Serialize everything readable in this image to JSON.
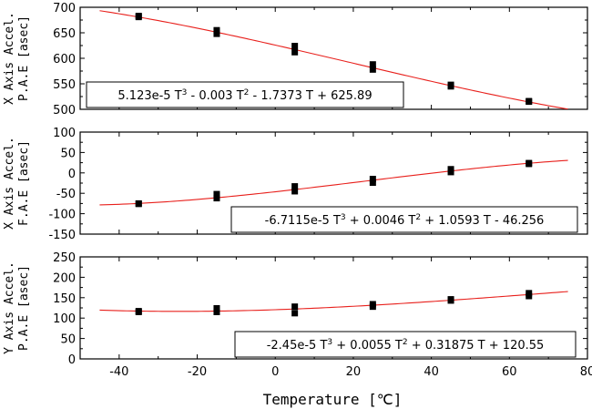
{
  "chart_data": [
    {
      "type": "scatter",
      "ylabel_line1": "X Axis Accel.",
      "ylabel_line2": "P.A.E [asec]",
      "xlim": [
        -50,
        80
      ],
      "ylim": [
        500,
        700
      ],
      "yticks": [
        500,
        550,
        600,
        650,
        700
      ],
      "equation": {
        "c3": "5.123e-5",
        "op1": " - ",
        "c2": "0.003",
        "op2": " - ",
        "c1": "1.7373",
        "op0": " + ",
        "c0": "625.89"
      },
      "fit": {
        "a3": 5.123e-05,
        "a2": -0.003,
        "a1": -1.7373,
        "a0": 625.89,
        "xrange": [
          -45,
          75
        ]
      },
      "points": [
        {
          "x": -35,
          "y": 681
        },
        {
          "x": -35,
          "y": 683
        },
        {
          "x": -15,
          "y": 648
        },
        {
          "x": -15,
          "y": 655
        },
        {
          "x": 5,
          "y": 612
        },
        {
          "x": 5,
          "y": 624
        },
        {
          "x": 25,
          "y": 578
        },
        {
          "x": 25,
          "y": 588
        },
        {
          "x": 45,
          "y": 545
        },
        {
          "x": 45,
          "y": 548
        },
        {
          "x": 65,
          "y": 515
        },
        {
          "x": 65,
          "y": 516
        }
      ]
    },
    {
      "type": "scatter",
      "ylabel_line1": "X Axis Accel.",
      "ylabel_line2": "F.A.E [asec]",
      "xlim": [
        -50,
        80
      ],
      "ylim": [
        -150,
        100
      ],
      "yticks": [
        -150,
        -100,
        -50,
        0,
        50,
        100
      ],
      "equation": {
        "c3": "-6.7115e-5",
        "op1": " + ",
        "c2": "0.0046",
        "op2": " + ",
        "c1": "1.0593",
        "op0": " - ",
        "c0": "46.256"
      },
      "fit": {
        "a3": -6.7115e-05,
        "a2": 0.0046,
        "a1": 1.0593,
        "a0": -46.256,
        "xrange": [
          -45,
          75
        ]
      },
      "points": [
        {
          "x": -35,
          "y": -75
        },
        {
          "x": -35,
          "y": -76
        },
        {
          "x": -15,
          "y": -52
        },
        {
          "x": -15,
          "y": -62
        },
        {
          "x": 5,
          "y": -33
        },
        {
          "x": 5,
          "y": -45
        },
        {
          "x": 25,
          "y": -15
        },
        {
          "x": 25,
          "y": -24
        },
        {
          "x": 45,
          "y": 2
        },
        {
          "x": 45,
          "y": 9
        },
        {
          "x": 65,
          "y": 22
        },
        {
          "x": 65,
          "y": 24
        }
      ]
    },
    {
      "type": "scatter",
      "ylabel_line1": "Y Axis Accel.",
      "ylabel_line2": "P.A.E [asec]",
      "xlim": [
        -50,
        80
      ],
      "ylim": [
        0,
        250
      ],
      "yticks": [
        0,
        50,
        100,
        150,
        200,
        250
      ],
      "equation": {
        "c3": "-2.45e-5",
        "op1": " + ",
        "c2": "0.0055",
        "op2": " + ",
        "c1": "0.31875",
        "op0": " + ",
        "c0": "120.55"
      },
      "fit": {
        "a3": -2.45e-05,
        "a2": 0.0055,
        "a1": 0.31875,
        "a0": 120.55,
        "xrange": [
          -45,
          75
        ]
      },
      "points": [
        {
          "x": -35,
          "y": 115
        },
        {
          "x": -35,
          "y": 117
        },
        {
          "x": -15,
          "y": 115
        },
        {
          "x": -15,
          "y": 124
        },
        {
          "x": 5,
          "y": 112
        },
        {
          "x": 5,
          "y": 128
        },
        {
          "x": 25,
          "y": 128
        },
        {
          "x": 25,
          "y": 134
        },
        {
          "x": 45,
          "y": 143
        },
        {
          "x": 45,
          "y": 146
        },
        {
          "x": 65,
          "y": 154
        },
        {
          "x": 65,
          "y": 161
        }
      ]
    }
  ],
  "x_axis": {
    "label": "Temperature [℃]",
    "ticks": [
      -40,
      -20,
      0,
      20,
      40,
      60,
      80
    ]
  },
  "colors": {
    "fit_line": "#e8201c",
    "marker": "#000000",
    "frame": "#000000",
    "background": "#ffffff"
  }
}
